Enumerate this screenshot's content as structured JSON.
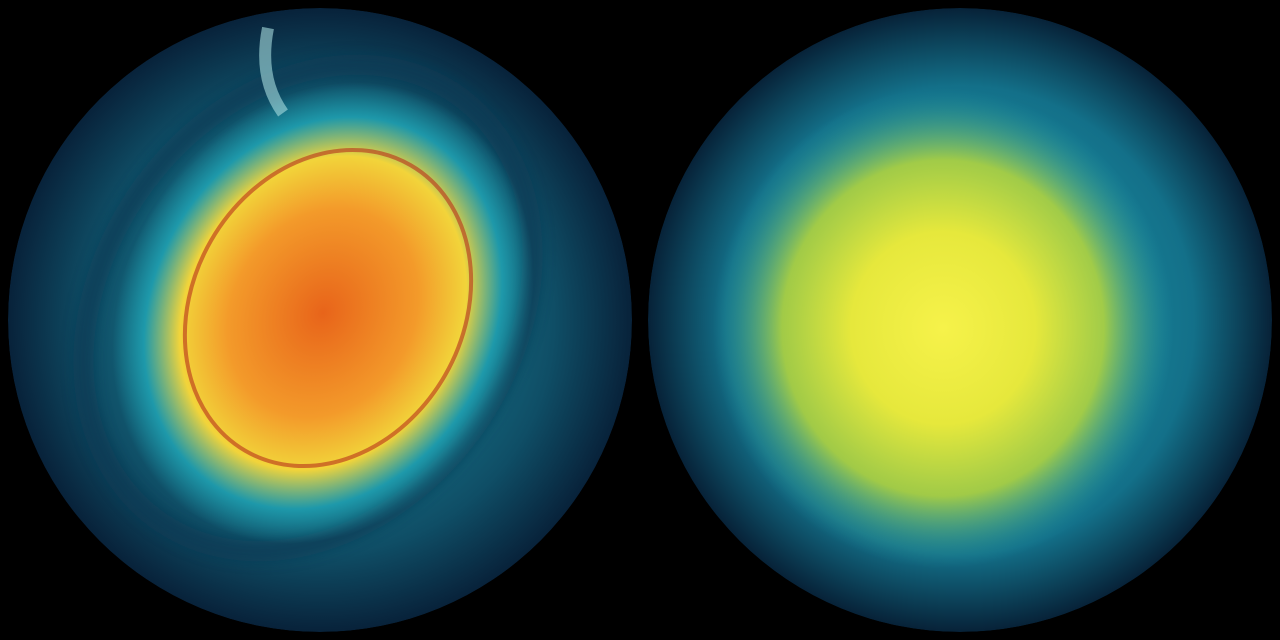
{
  "images": [
    {
      "name": "left-globe",
      "colors": {
        "core": "#e8641a",
        "inner": "#f39a2a",
        "ring": "#f2d43a",
        "mid": "#1f9fb0",
        "outer": "#0f4e66",
        "edge": "#08223a"
      }
    },
    {
      "name": "right-globe",
      "colors": {
        "core": "#f6f24a",
        "inner": "#e6e83c",
        "ring": "#b9d83a",
        "mid": "#22a6b4",
        "outer": "#137089",
        "edge": "#072238"
      }
    }
  ]
}
